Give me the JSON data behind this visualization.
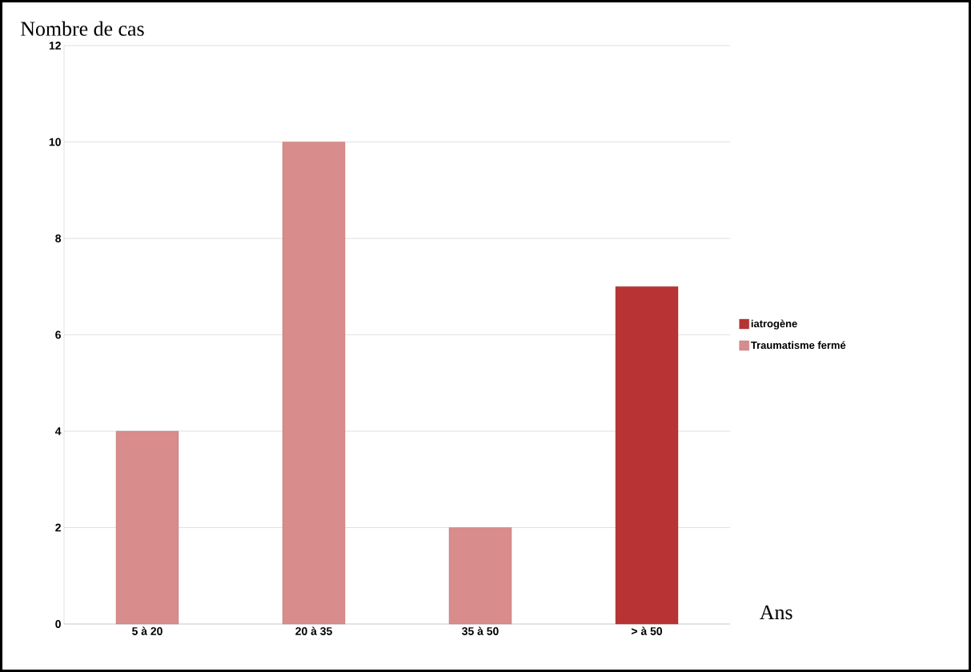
{
  "chart_data": {
    "type": "bar",
    "xlabel": "Ans",
    "ylabel": "Nombre de cas",
    "categories": [
      "5 à 20",
      "20 à 35",
      "35 à 50",
      "> à 50"
    ],
    "series": [
      {
        "name": "iatrogène",
        "color": "#b83434",
        "values": [
          null,
          null,
          null,
          7
        ]
      },
      {
        "name": "Traumatisme fermé",
        "color": "#d98c8c",
        "values": [
          4,
          10,
          2,
          null
        ]
      }
    ],
    "stacked": true,
    "ylim": [
      0,
      12
    ],
    "yticks": [
      0,
      2,
      4,
      6,
      8,
      10,
      12
    ],
    "grid": "y",
    "legend": "right"
  }
}
